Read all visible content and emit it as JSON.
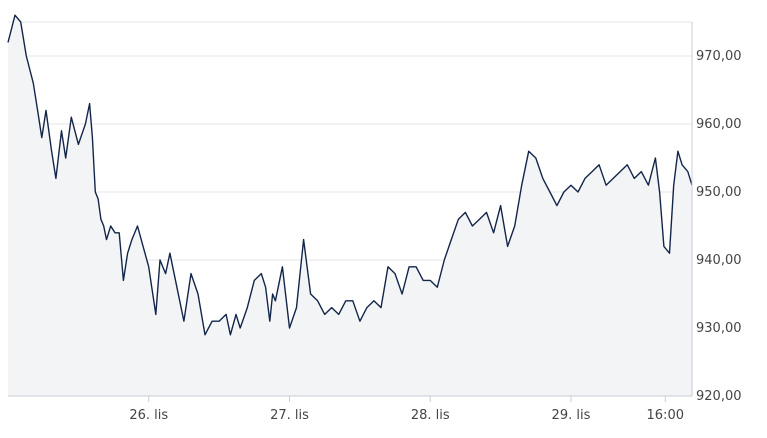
{
  "chart_data": {
    "type": "area",
    "title": "",
    "xlabel": "",
    "ylabel": "",
    "ylim": [
      920,
      975
    ],
    "y_ticks": [
      "920,00",
      "930,00",
      "940,00",
      "950,00",
      "960,00",
      "970,00"
    ],
    "x_ticks": [
      {
        "label": "26. lis",
        "x": 1
      },
      {
        "label": "27. lis",
        "x": 2
      },
      {
        "label": "28. lis",
        "x": 3
      },
      {
        "label": "29. lis",
        "x": 4
      },
      {
        "label": "16:00",
        "x": 4.67
      }
    ],
    "grid": true,
    "series": [
      {
        "x": [
          0.0,
          0.05,
          0.09,
          0.13,
          0.18,
          0.21,
          0.24,
          0.27,
          0.31,
          0.34,
          0.38,
          0.41,
          0.45,
          0.5,
          0.55,
          0.58,
          0.6,
          0.62,
          0.64,
          0.66,
          0.68,
          0.7,
          0.73,
          0.76,
          0.79,
          0.82,
          0.85,
          0.88,
          0.92,
          0.96,
          1.0,
          1.05,
          1.08,
          1.12,
          1.15,
          1.2,
          1.25,
          1.3,
          1.35,
          1.4,
          1.45,
          1.5,
          1.55,
          1.58,
          1.62,
          1.65,
          1.7,
          1.75,
          1.8,
          1.83,
          1.86,
          1.88,
          1.9,
          1.95,
          2.0,
          2.05,
          2.1,
          2.15,
          2.2,
          2.25,
          2.3,
          2.35,
          2.4,
          2.45,
          2.5,
          2.55,
          2.6,
          2.65,
          2.7,
          2.75,
          2.8,
          2.85,
          2.9,
          2.95,
          3.0,
          3.05,
          3.1,
          3.15,
          3.2,
          3.25,
          3.3,
          3.35,
          3.4,
          3.45,
          3.5,
          3.55,
          3.6,
          3.65,
          3.7,
          3.75,
          3.8,
          3.85,
          3.9,
          3.95,
          4.0,
          4.05,
          4.1,
          4.15,
          4.2,
          4.25,
          4.3,
          4.35,
          4.4,
          4.45,
          4.5,
          4.55,
          4.6,
          4.63,
          4.66,
          4.7,
          4.73,
          4.76,
          4.79,
          4.83,
          4.86
        ],
        "values": [
          972,
          976,
          975,
          970,
          966,
          962,
          958,
          962,
          956,
          952,
          959,
          955,
          961,
          957,
          960,
          963,
          958,
          950,
          949,
          946,
          945,
          943,
          945,
          944,
          944,
          937,
          941,
          943,
          945,
          942,
          939,
          932,
          940,
          938,
          941,
          936,
          931,
          938,
          935,
          929,
          931,
          931,
          932,
          929,
          932,
          930,
          933,
          937,
          938,
          936,
          931,
          935,
          934,
          939,
          930,
          933,
          943,
          935,
          934,
          932,
          933,
          932,
          934,
          934,
          931,
          933,
          934,
          933,
          939,
          938,
          935,
          939,
          939,
          937,
          937,
          936,
          940,
          943,
          946,
          947,
          945,
          946,
          947,
          944,
          948,
          942,
          945,
          951,
          956,
          955,
          952,
          950,
          948,
          950,
          951,
          950,
          952,
          953,
          954,
          951,
          952,
          953,
          954,
          952,
          953,
          951,
          955,
          950,
          942,
          941,
          951,
          956,
          954,
          953,
          951
        ]
      }
    ]
  }
}
